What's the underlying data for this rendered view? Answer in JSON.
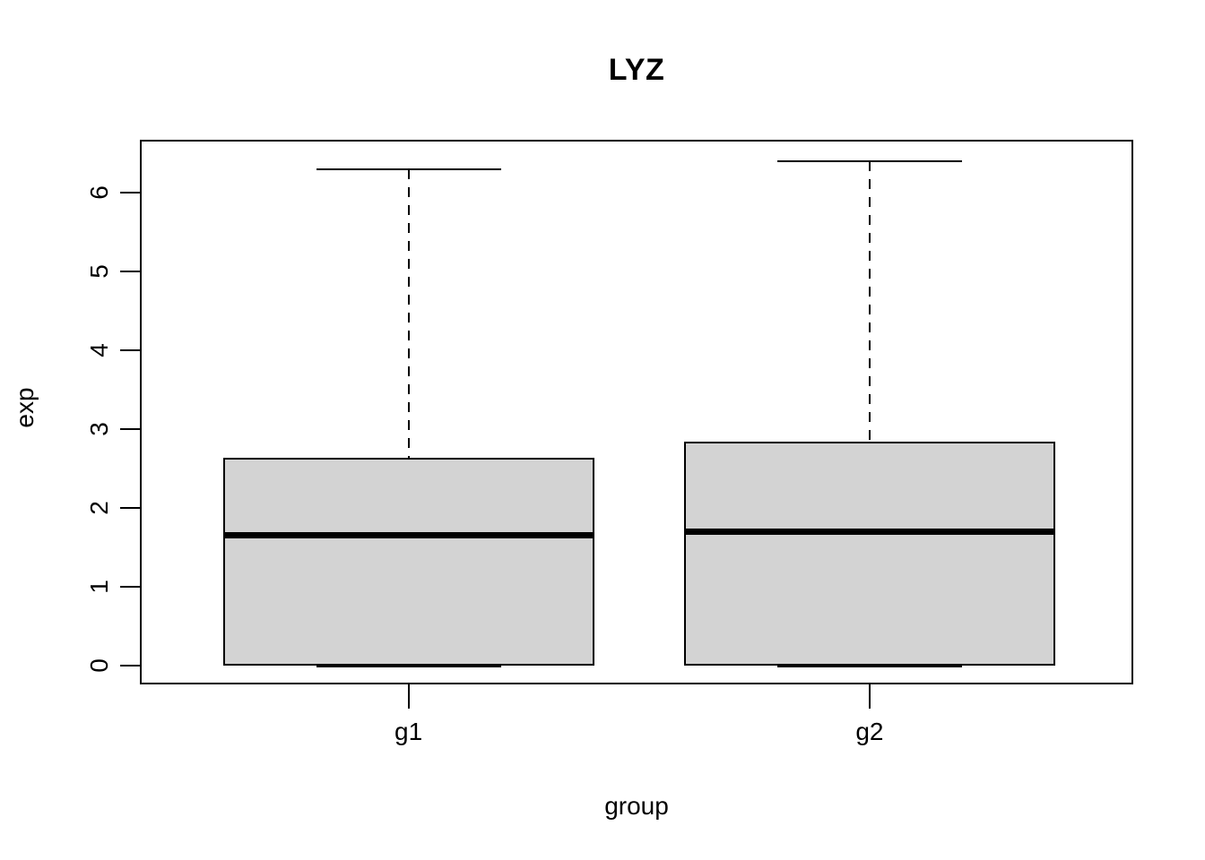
{
  "chart_data": {
    "type": "box",
    "title": "LYZ",
    "xlabel": "group",
    "ylabel": "exp",
    "categories": [
      "g1",
      "g2"
    ],
    "y_ticks": [
      0,
      1,
      2,
      3,
      4,
      5,
      6
    ],
    "ylim": [
      -0.23,
      6.66
    ],
    "grid": false,
    "legend": "none",
    "boxes": [
      {
        "group": "g1",
        "whisker_low": 0,
        "q1": 0,
        "median": 1.65,
        "q3": 2.64,
        "whisker_high": 6.3
      },
      {
        "group": "g2",
        "whisker_low": 0,
        "q1": 0,
        "median": 1.7,
        "q3": 2.84,
        "whisker_high": 6.4
      }
    ],
    "colors": {
      "box_fill": "#d3d3d3",
      "line": "#000000",
      "background": "#ffffff"
    }
  }
}
